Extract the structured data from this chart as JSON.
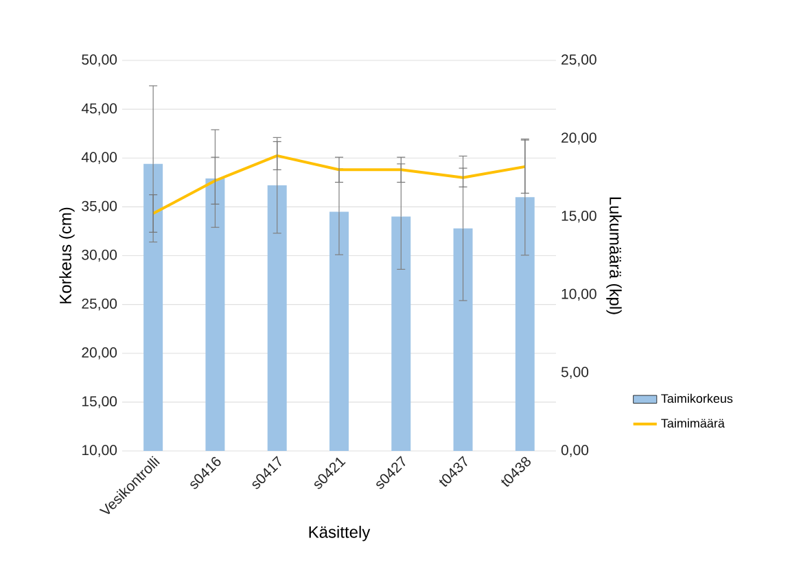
{
  "chart_data": {
    "type": "bar",
    "xlabel": "Käsittely",
    "ylabel": "Korkeus (cm)",
    "y2label": "Lukumäärä (kpl)",
    "categories": [
      "Vesikontrolli",
      "s0416",
      "s0417",
      "s0421",
      "s0427",
      "t0437",
      "t0438"
    ],
    "ylim": [
      10,
      50
    ],
    "yticks": [
      {
        "value": 10,
        "label": "10,00"
      },
      {
        "value": 15,
        "label": "15,00"
      },
      {
        "value": 20,
        "label": "20,00"
      },
      {
        "value": 25,
        "label": "25,00"
      },
      {
        "value": 30,
        "label": "30,00"
      },
      {
        "value": 35,
        "label": "35,00"
      },
      {
        "value": 40,
        "label": "40,00"
      },
      {
        "value": 45,
        "label": "45,00"
      },
      {
        "value": 50,
        "label": "50,00"
      }
    ],
    "y2lim": [
      0,
      25
    ],
    "y2ticks": [
      {
        "value": 0,
        "label": "0,00"
      },
      {
        "value": 5,
        "label": "5,00"
      },
      {
        "value": 10,
        "label": "10,00"
      },
      {
        "value": 15,
        "label": "15,00"
      },
      {
        "value": 20,
        "label": "20,00"
      },
      {
        "value": 25,
        "label": "25,00"
      }
    ],
    "grid": "y",
    "legend": "right",
    "series": [
      {
        "name": "Taimikorkeus",
        "color": "#9dc3e6",
        "values": [
          39.4,
          37.9,
          37.2,
          34.5,
          34.0,
          32.8,
          36.0
        ],
        "errors": [
          8.0,
          5.0,
          4.9,
          4.4,
          5.4,
          7.4,
          5.95
        ]
      },
      {
        "name": "Taimimäärä",
        "type": "line",
        "axis": "y2",
        "color": "#ffc000",
        "values": [
          15.2,
          17.3,
          18.9,
          18.0,
          18.0,
          17.5,
          18.2
        ],
        "errors": [
          1.2,
          1.5,
          0.9,
          0.8,
          0.8,
          0.6,
          1.7
        ]
      }
    ]
  }
}
